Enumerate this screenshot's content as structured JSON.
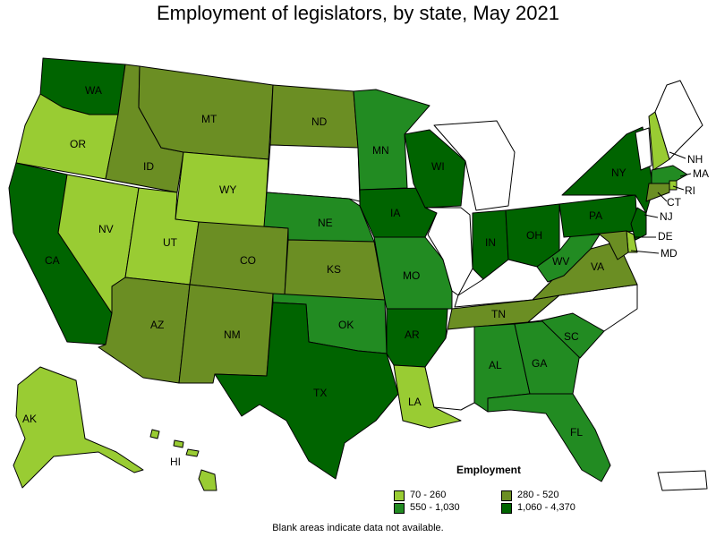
{
  "title": "Employment of legislators, by state, May 2021",
  "legend": {
    "title": "Employment",
    "bins": [
      {
        "label": "70 - 260",
        "color": "#99cc33"
      },
      {
        "label": "280 - 520",
        "color": "#6b8e23"
      },
      {
        "label": "550 - 1,030",
        "color": "#228b22"
      },
      {
        "label": "1,060 - 4,370",
        "color": "#006400"
      }
    ]
  },
  "note": "Blank areas indicate data not available.",
  "states": {
    "WA": {
      "bin": 3
    },
    "OR": {
      "bin": 0
    },
    "CA": {
      "bin": 3
    },
    "NV": {
      "bin": 0
    },
    "ID": {
      "bin": 1
    },
    "MT": {
      "bin": 1
    },
    "WY": {
      "bin": 0
    },
    "UT": {
      "bin": 0
    },
    "AZ": {
      "bin": 1
    },
    "CO": {
      "bin": 1
    },
    "NM": {
      "bin": 1
    },
    "ND": {
      "bin": 1
    },
    "SD": {
      "bin": null
    },
    "NE": {
      "bin": 2
    },
    "KS": {
      "bin": 1
    },
    "OK": {
      "bin": 2
    },
    "TX": {
      "bin": 3
    },
    "MN": {
      "bin": 2
    },
    "IA": {
      "bin": 3
    },
    "MO": {
      "bin": 2
    },
    "AR": {
      "bin": 3
    },
    "LA": {
      "bin": 0
    },
    "WI": {
      "bin": 3
    },
    "IL": {
      "bin": null
    },
    "MI": {
      "bin": null
    },
    "IN": {
      "bin": 3
    },
    "OH": {
      "bin": 3
    },
    "KY": {
      "bin": null
    },
    "TN": {
      "bin": 1
    },
    "MS": {
      "bin": null
    },
    "AL": {
      "bin": 2
    },
    "GA": {
      "bin": 2
    },
    "FL": {
      "bin": 2
    },
    "SC": {
      "bin": 2
    },
    "NC": {
      "bin": null
    },
    "VA": {
      "bin": 1
    },
    "WV": {
      "bin": 2
    },
    "PA": {
      "bin": 3
    },
    "NY": {
      "bin": 3
    },
    "VT": {
      "bin": null
    },
    "NH": {
      "bin": 0
    },
    "ME": {
      "bin": null
    },
    "MA": {
      "bin": 2
    },
    "RI": {
      "bin": 0
    },
    "CT": {
      "bin": 1
    },
    "NJ": {
      "bin": 3
    },
    "DE": {
      "bin": 0
    },
    "MD": {
      "bin": 1
    },
    "AK": {
      "bin": 0
    },
    "HI": {
      "bin": 0
    },
    "PR": {
      "bin": null
    }
  }
}
